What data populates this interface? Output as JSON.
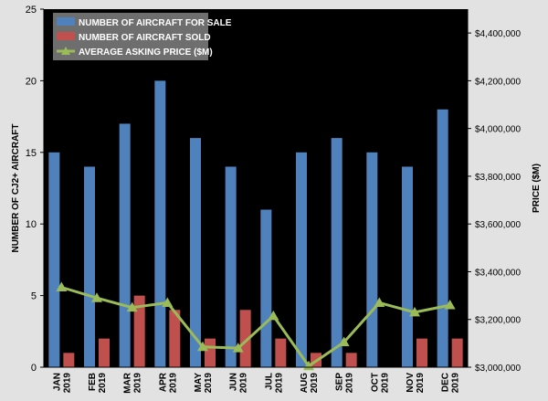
{
  "chart_data": {
    "type": "bar",
    "categories": [
      [
        "JAN",
        "2019"
      ],
      [
        "FEB",
        "2019"
      ],
      [
        "MAR",
        "2019"
      ],
      [
        "APR",
        "2019"
      ],
      [
        "MAY",
        "2019"
      ],
      [
        "JUN",
        "2019"
      ],
      [
        "JUL",
        "2019"
      ],
      [
        "AUG",
        "2019"
      ],
      [
        "SEP",
        "2019"
      ],
      [
        "OCT",
        "2019"
      ],
      [
        "NOV",
        "2019"
      ],
      [
        "DEC",
        "2019"
      ]
    ],
    "series": [
      {
        "name": "NUMBER OF AIRCRAFT FOR SALE",
        "kind": "bar",
        "axis": "left",
        "color": "#4f81bd",
        "values": [
          15,
          14,
          17,
          20,
          16,
          14,
          11,
          15,
          16,
          15,
          14,
          18
        ]
      },
      {
        "name": "NUMBER OF AIRCRAFT SOLD",
        "kind": "bar",
        "axis": "left",
        "color": "#c0504d",
        "values": [
          1,
          2,
          5,
          4,
          2,
          4,
          2,
          1,
          1,
          0,
          2,
          2
        ]
      },
      {
        "name": "AVERAGE ASKING PRICE ($M)",
        "kind": "line",
        "axis": "right",
        "color": "#9bbb59",
        "values": [
          3335000,
          3290000,
          3250000,
          3270000,
          3085000,
          3080000,
          3215000,
          3005000,
          3105000,
          3270000,
          3230000,
          3260000
        ]
      }
    ],
    "ylabel": "NUMBER OF CJ2+ AIRCRAFT",
    "y2label": "PRICE ($M)",
    "ylim": [
      0,
      25
    ],
    "yticks": [
      "0",
      "5",
      "10",
      "15",
      "20",
      "25"
    ],
    "y2lim": [
      3000000,
      4500000
    ],
    "y2ticks": [
      "$3,000,000",
      "$3,200,000",
      "$3,400,000",
      "$3,600,000",
      "$3,800,000",
      "$4,000,000",
      "$4,200,000",
      "$4,400,000"
    ],
    "legend_position": "top-left",
    "grid": false,
    "plot_background": "#000000"
  }
}
